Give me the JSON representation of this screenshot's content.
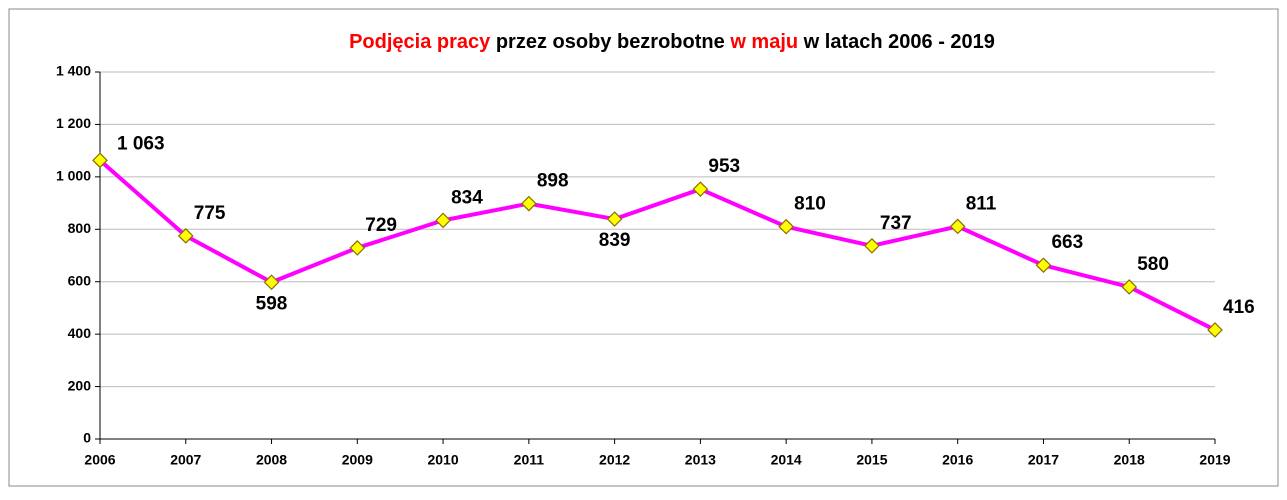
{
  "chart_data": {
    "type": "line",
    "title_parts": [
      {
        "text": "Podjęcia pracy",
        "color": "#ff0000"
      },
      {
        "text": " przez osoby bezrobotne ",
        "color": "#000000"
      },
      {
        "text": "w maju",
        "color": "#ff0000"
      },
      {
        "text": " w latach 2006 - 2019",
        "color": "#000000"
      }
    ],
    "categories": [
      "2006",
      "2007",
      "2008",
      "2009",
      "2010",
      "2011",
      "2012",
      "2013",
      "2014",
      "2015",
      "2016",
      "2017",
      "2018",
      "2019"
    ],
    "series": [
      {
        "color": "#ff00ff",
        "marker_color": "#ffff00",
        "values": [
          1063,
          775,
          598,
          729,
          834,
          898,
          839,
          953,
          810,
          737,
          811,
          663,
          580,
          416
        ],
        "value_labels": [
          "1 063",
          "775",
          "598",
          "729",
          "834",
          "898",
          "839",
          "953",
          "810",
          "737",
          "811",
          "663",
          "580",
          "416"
        ]
      }
    ],
    "ylim": [
      0,
      1400
    ],
    "yticks": [
      0,
      200,
      400,
      600,
      800,
      {
        "value": 1000,
        "label": "1 000"
      },
      {
        "value": 1200,
        "label": "1 200"
      },
      {
        "value": 1400,
        "label": "1 400"
      }
    ],
    "grid": true
  }
}
